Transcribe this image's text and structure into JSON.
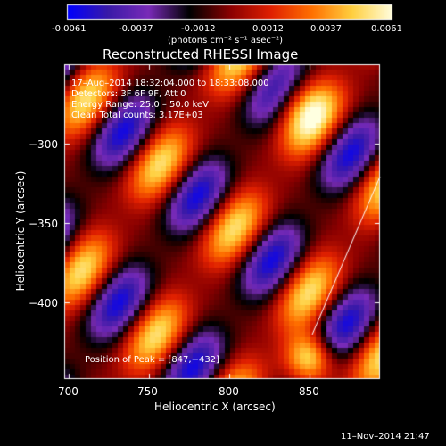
{
  "colorbar": {
    "ticks": [
      "-0.0061",
      "-0.0037",
      "-0.0012",
      "0.0012",
      "0.0037",
      "0.0061"
    ],
    "unit_label": "(photons cm⁻² s⁻¹ asec⁻²)",
    "colors": [
      "#0000ff",
      "#3a1aa8",
      "#7a2bb8",
      "#000000",
      "#8a0000",
      "#e02000",
      "#ff7000",
      "#ffd040",
      "#ffffe0"
    ]
  },
  "plot": {
    "title": "Reconstructed RHESSI Image",
    "xlabel": "Heliocentric X (arcsec)",
    "ylabel": "Heliocentric Y (arcsec)",
    "xticks": [
      "700",
      "750",
      "800",
      "850"
    ],
    "yticks": [
      "−300",
      "−350",
      "−400"
    ],
    "xlim": [
      700,
      890
    ],
    "ylim": [
      -445,
      -265
    ]
  },
  "info": {
    "line1": "17–Aug–2014 18:32:04.000 to 18:33:08.000",
    "line2": "Detectors: 3F 6F 9F, Att 0",
    "line3": "Energy Range: 25.0 – 50.0 keV",
    "line4": "Clean    Total counts: 3.17E+03"
  },
  "peak_label": "Position of Peak = [847,−432]",
  "footer_timestamp": "11–Nov–2014 21:47"
}
